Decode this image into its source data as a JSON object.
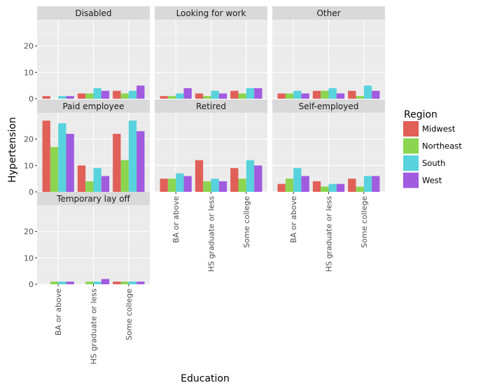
{
  "chart_data": {
    "type": "bar",
    "xlabel": "Education",
    "ylabel": "Hypertension",
    "ylim": [
      0,
      30
    ],
    "yticks": [
      0,
      10,
      20
    ],
    "categories": [
      "BA or above",
      "HS graduate or less",
      "Some college"
    ],
    "legend": {
      "title": "Region",
      "placement": "right"
    },
    "series_names": [
      "Midwest",
      "Northeast",
      "South",
      "West"
    ],
    "colors": {
      "Midwest": "#e06058",
      "Northeast": "#8cd550",
      "South": "#58d2dc",
      "West": "#a05be0"
    },
    "panels": [
      {
        "label": "Disabled",
        "values": {
          "Midwest": [
            1,
            2,
            3
          ],
          "Northeast": [
            0,
            2,
            2
          ],
          "South": [
            1,
            4,
            3
          ],
          "West": [
            1,
            3,
            5
          ]
        }
      },
      {
        "label": "Looking for work",
        "values": {
          "Midwest": [
            1,
            2,
            3
          ],
          "Northeast": [
            1,
            1,
            2
          ],
          "South": [
            2,
            3,
            4
          ],
          "West": [
            4,
            2,
            4
          ]
        }
      },
      {
        "label": "Other",
        "values": {
          "Midwest": [
            2,
            3,
            3
          ],
          "Northeast": [
            2,
            3,
            1
          ],
          "South": [
            3,
            4,
            5
          ],
          "West": [
            2,
            2,
            3
          ]
        }
      },
      {
        "label": "Paid employee",
        "values": {
          "Midwest": [
            27,
            10,
            22
          ],
          "Northeast": [
            17,
            4,
            12
          ],
          "South": [
            26,
            9,
            27
          ],
          "West": [
            22,
            6,
            23
          ]
        }
      },
      {
        "label": "Retired",
        "values": {
          "Midwest": [
            5,
            12,
            9
          ],
          "Northeast": [
            5,
            4,
            5
          ],
          "South": [
            7,
            5,
            12
          ],
          "West": [
            6,
            4,
            10
          ]
        }
      },
      {
        "label": "Self-employed",
        "values": {
          "Midwest": [
            3,
            4,
            5
          ],
          "Northeast": [
            5,
            2,
            2
          ],
          "South": [
            9,
            3,
            6
          ],
          "West": [
            6,
            3,
            6
          ]
        }
      },
      {
        "label": "Temporary lay off",
        "values": {
          "Midwest": [
            0,
            0,
            1
          ],
          "Northeast": [
            1,
            1,
            1
          ],
          "South": [
            1,
            1,
            1
          ],
          "West": [
            1,
            2,
            1
          ]
        }
      }
    ]
  }
}
